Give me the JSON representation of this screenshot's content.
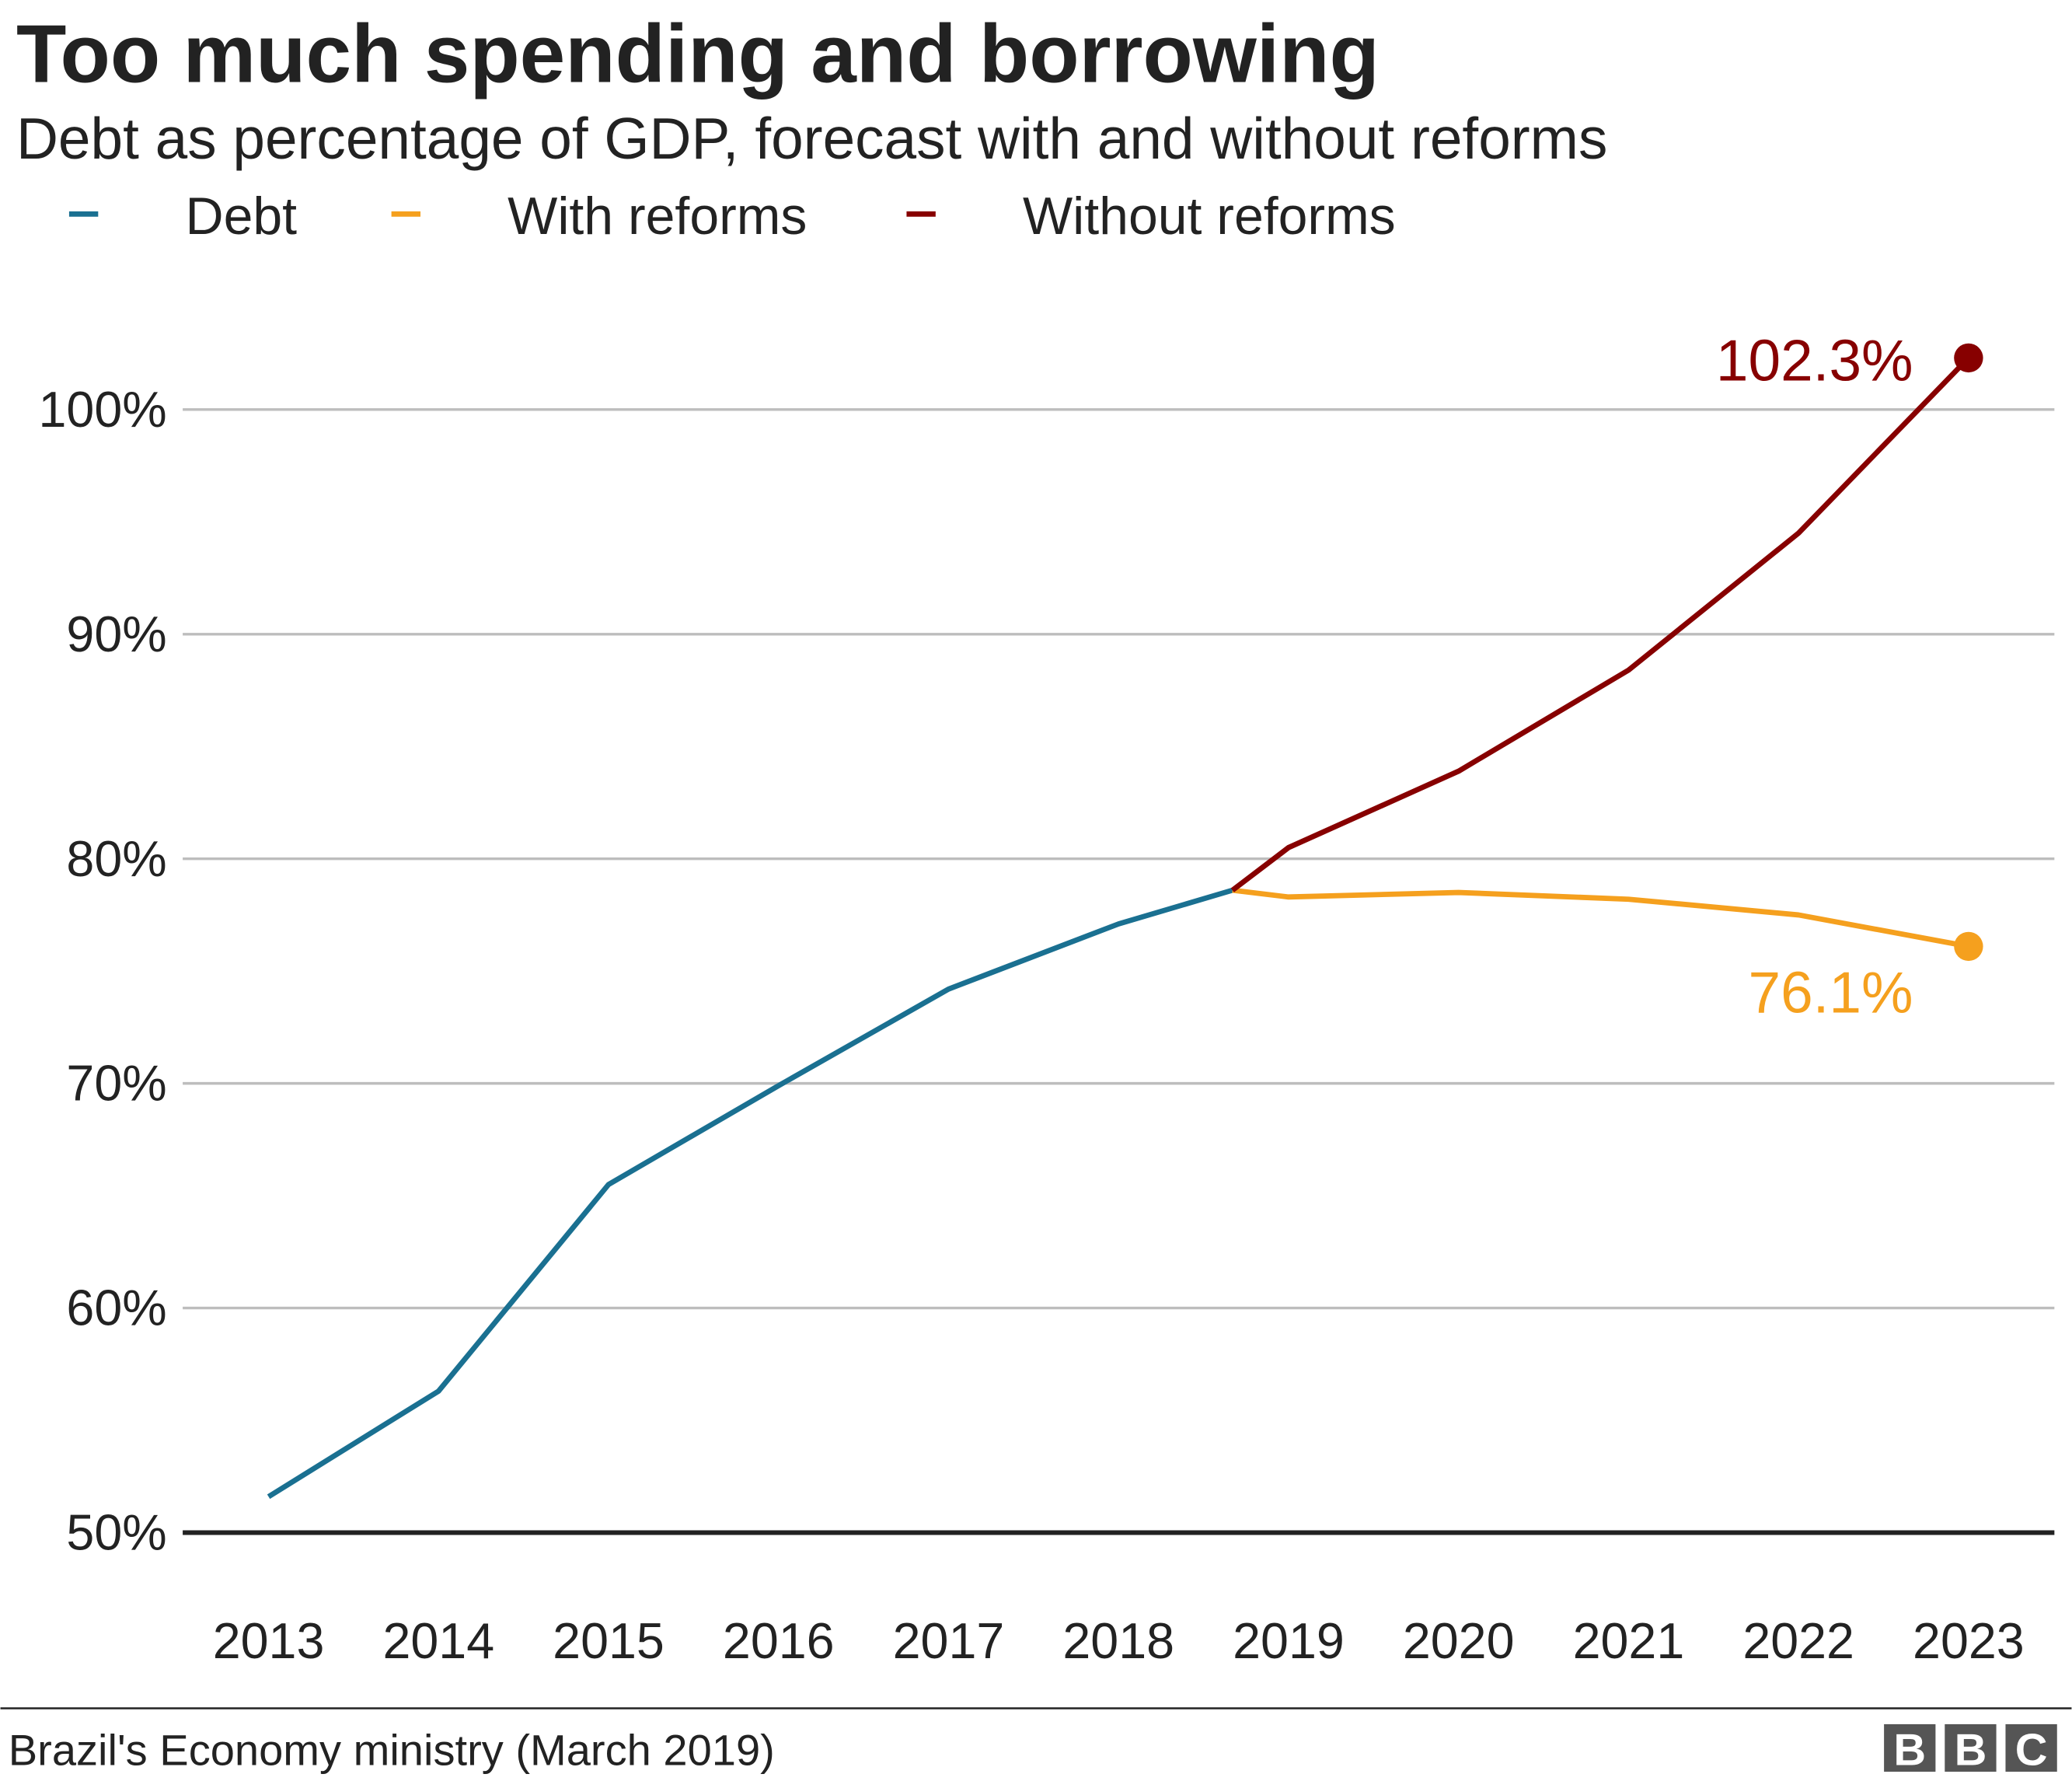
{
  "chart_data": {
    "type": "line",
    "title": "Too much spending and borrowing",
    "subtitle": "Debt as percentage of GDP, forecast with and without reforms",
    "xlabel": "",
    "ylabel": "",
    "xlim": [
      2012.6,
      2023.5
    ],
    "ylim": [
      50,
      104
    ],
    "grid": true,
    "legend_position": "top-left",
    "x_ticks": [
      "2013",
      "2014",
      "2015",
      "2016",
      "2017",
      "2018",
      "2019",
      "2020",
      "2021",
      "2022",
      "2023"
    ],
    "y_ticks": [
      "50%",
      "60%",
      "70%",
      "80%",
      "90%",
      "100%"
    ],
    "y_tick_values": [
      50,
      60,
      70,
      80,
      90,
      100
    ],
    "series": [
      {
        "name": "Debt",
        "color": "#1a7091",
        "x": [
          2013,
          2014,
          2015,
          2016,
          2017,
          2018,
          2018.67
        ],
        "y": [
          51.6,
          56.3,
          65.5,
          69.9,
          74.2,
          77.1,
          78.6
        ]
      },
      {
        "name": "With reforms",
        "color": "#f5a01e",
        "x": [
          2018.67,
          2019,
          2020,
          2021,
          2022,
          2023
        ],
        "y": [
          78.6,
          78.3,
          78.5,
          78.2,
          77.5,
          76.1
        ]
      },
      {
        "name": "Without reforms",
        "color": "#870000",
        "x": [
          2018.67,
          2019,
          2020,
          2021,
          2022,
          2023
        ],
        "y": [
          78.6,
          80.5,
          83.9,
          88.4,
          94.5,
          102.3
        ]
      }
    ],
    "annotations": [
      {
        "text": "102.3%",
        "series": "Without reforms",
        "x": 2023,
        "y": 102.3
      },
      {
        "text": "76.1%",
        "series": "With reforms",
        "x": 2023,
        "y": 76.1
      }
    ],
    "source": "Brazil's Economy ministry (March 2019)",
    "logo": "BBC"
  }
}
